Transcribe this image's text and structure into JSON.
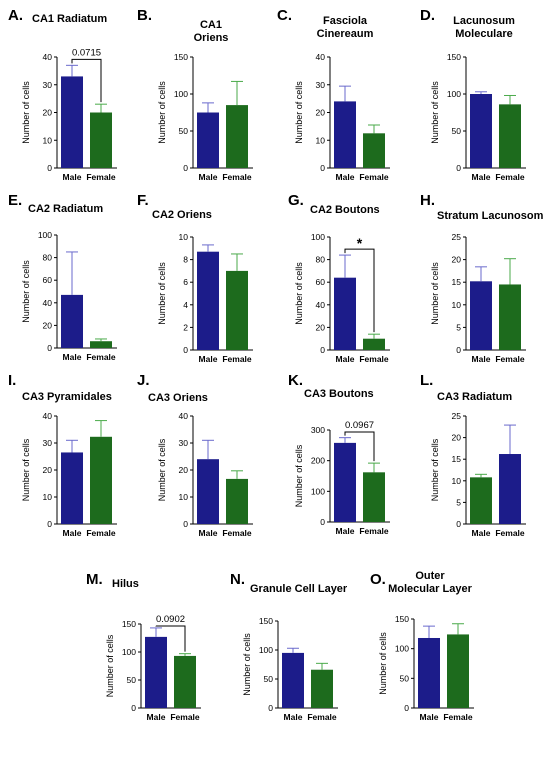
{
  "figure": {
    "categories": [
      "Male",
      "Female"
    ],
    "ylabel": "Number of cells",
    "colors": {
      "navy": "#1c1c8a",
      "green": "#1d6b1d",
      "errNavy": "#6a6acc",
      "errGreen": "#4aaa4a"
    }
  },
  "chart_data": [
    {
      "letter": "A.",
      "title": [
        "CA1 Radiatum"
      ],
      "type": "bar",
      "categories": [
        "Male",
        "Female"
      ],
      "values": [
        33,
        20
      ],
      "errors": [
        4,
        3
      ],
      "colors": [
        "navy",
        "green"
      ],
      "ylim": [
        0,
        40
      ],
      "ticks": [
        0,
        10,
        20,
        30,
        40
      ],
      "annotation": "0.0715"
    },
    {
      "letter": "B.",
      "title": [
        "CA1",
        "Oriens"
      ],
      "type": "bar",
      "categories": [
        "Male",
        "Female"
      ],
      "values": [
        75,
        85
      ],
      "errors": [
        13,
        32
      ],
      "colors": [
        "navy",
        "green"
      ],
      "ylim": [
        0,
        150
      ],
      "ticks": [
        0,
        50,
        100,
        150
      ]
    },
    {
      "letter": "C.",
      "title": [
        "Fasciola",
        "Cinereaum"
      ],
      "type": "bar",
      "categories": [
        "Male",
        "Female"
      ],
      "values": [
        24,
        12.5
      ],
      "errors": [
        5.5,
        3
      ],
      "colors": [
        "navy",
        "green"
      ],
      "ylim": [
        0,
        40
      ],
      "ticks": [
        0,
        10,
        20,
        30,
        40
      ]
    },
    {
      "letter": "D.",
      "title": [
        "Lacunosum",
        "Moleculare"
      ],
      "type": "bar",
      "categories": [
        "Male",
        "Female"
      ],
      "values": [
        100,
        86
      ],
      "errors": [
        3,
        12
      ],
      "colors": [
        "navy",
        "green"
      ],
      "ylim": [
        0,
        150
      ],
      "ticks": [
        0,
        50,
        100,
        150
      ]
    },
    {
      "letter": "E.",
      "title": [
        "CA2 Radiatum"
      ],
      "type": "bar",
      "categories": [
        "Male",
        "Female"
      ],
      "values": [
        47,
        6
      ],
      "errors": [
        38,
        2
      ],
      "colors": [
        "navy",
        "green"
      ],
      "ylim": [
        0,
        100
      ],
      "ticks": [
        0,
        20,
        40,
        60,
        80,
        100
      ]
    },
    {
      "letter": "F.",
      "title": [
        "CA2 Oriens"
      ],
      "type": "bar",
      "categories": [
        "Male",
        "Female"
      ],
      "values": [
        8.7,
        7
      ],
      "errors": [
        0.6,
        1.5
      ],
      "colors": [
        "navy",
        "green"
      ],
      "ylim": [
        0,
        10
      ],
      "ticks": [
        0,
        2,
        4,
        6,
        8,
        10
      ]
    },
    {
      "letter": "G.",
      "title": [
        "CA2 Boutons"
      ],
      "type": "bar",
      "categories": [
        "Male",
        "Female"
      ],
      "values": [
        64,
        10
      ],
      "errors": [
        20,
        4
      ],
      "colors": [
        "navy",
        "green"
      ],
      "ylim": [
        0,
        100
      ],
      "ticks": [
        0,
        20,
        40,
        60,
        80,
        100
      ],
      "annotation": "*"
    },
    {
      "letter": "H.",
      "title": [
        "Stratum Lacunosom"
      ],
      "type": "bar",
      "categories": [
        "Male",
        "Female"
      ],
      "values": [
        15.2,
        14.5
      ],
      "errors": [
        3.2,
        5.7
      ],
      "colors": [
        "navy",
        "green"
      ],
      "ylim": [
        0,
        25
      ],
      "ticks": [
        0,
        5,
        10,
        15,
        20,
        25
      ]
    },
    {
      "letter": "I.",
      "title": [
        "CA3 Pyramidales"
      ],
      "type": "bar",
      "categories": [
        "Male",
        "Female"
      ],
      "values": [
        26.5,
        32.3
      ],
      "errors": [
        4.5,
        6
      ],
      "colors": [
        "navy",
        "green"
      ],
      "ylim": [
        0,
        40
      ],
      "ticks": [
        0,
        10,
        20,
        30,
        40
      ]
    },
    {
      "letter": "J.",
      "title": [
        "CA3 Oriens"
      ],
      "type": "bar",
      "categories": [
        "Male",
        "Female"
      ],
      "values": [
        24,
        16.7
      ],
      "errors": [
        7,
        3
      ],
      "colors": [
        "navy",
        "green"
      ],
      "ylim": [
        0,
        40
      ],
      "ticks": [
        0,
        10,
        20,
        30,
        40
      ]
    },
    {
      "letter": "K.",
      "title": [
        "CA3 Boutons"
      ],
      "type": "bar",
      "categories": [
        "Male",
        "Female"
      ],
      "values": [
        258,
        162
      ],
      "errors": [
        17,
        30
      ],
      "colors": [
        "navy",
        "green"
      ],
      "ylim": [
        0,
        300
      ],
      "ticks": [
        0,
        100,
        200,
        300
      ],
      "annotation": "0.0967"
    },
    {
      "letter": "L.",
      "title": [
        "CA3 Radiatum"
      ],
      "type": "bar",
      "categories": [
        "Male",
        "Female"
      ],
      "values": [
        10.8,
        16.2
      ],
      "errors": [
        0.7,
        6.7
      ],
      "colors": [
        "green",
        "navy"
      ],
      "ylim": [
        0,
        25
      ],
      "ticks": [
        0,
        5,
        10,
        15,
        20,
        25
      ]
    },
    {
      "letter": "M.",
      "title": [
        "Hilus"
      ],
      "type": "bar",
      "categories": [
        "Male",
        "Female"
      ],
      "values": [
        127,
        93
      ],
      "errors": [
        16,
        4
      ],
      "colors": [
        "navy",
        "green"
      ],
      "ylim": [
        0,
        150
      ],
      "ticks": [
        0,
        50,
        100,
        150
      ],
      "annotation": "0.0902"
    },
    {
      "letter": "N.",
      "title": [
        "Granule Cell Layer"
      ],
      "type": "bar",
      "categories": [
        "Male",
        "Female"
      ],
      "values": [
        95,
        66
      ],
      "errors": [
        8,
        11
      ],
      "colors": [
        "navy",
        "green"
      ],
      "ylim": [
        0,
        150
      ],
      "ticks": [
        0,
        50,
        100,
        150
      ]
    },
    {
      "letter": "O.",
      "title": [
        "Outer",
        "Molecular Layer"
      ],
      "type": "bar",
      "categories": [
        "Male",
        "Female"
      ],
      "values": [
        118,
        124
      ],
      "errors": [
        20,
        18
      ],
      "colors": [
        "navy",
        "green"
      ],
      "ylim": [
        0,
        150
      ],
      "ticks": [
        0,
        50,
        100,
        150
      ]
    }
  ]
}
